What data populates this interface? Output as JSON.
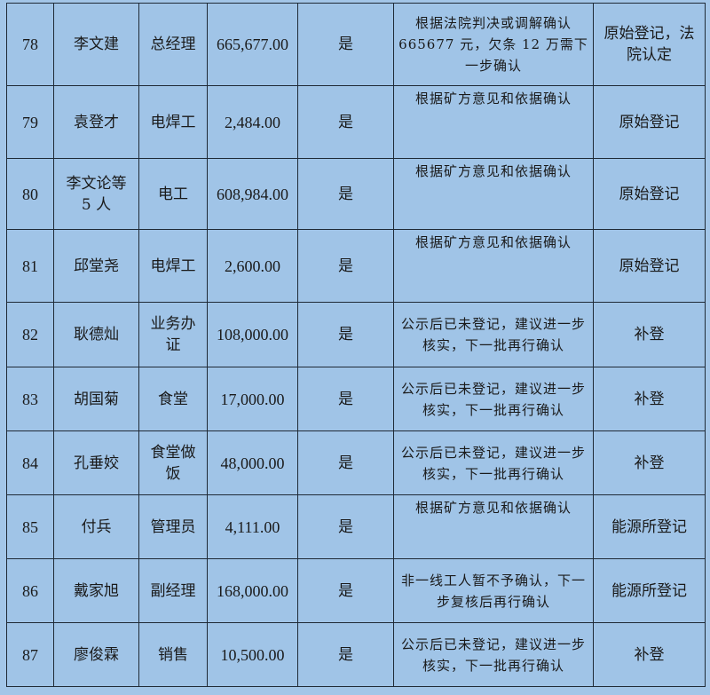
{
  "rows": [
    {
      "no": "78",
      "name": "李文建",
      "job": "总经理",
      "amount": "665,677.00",
      "flag": "是",
      "note": "根据法院判决或调解确认665677 元，欠条 12 万需下一步确认",
      "source": "原始登记，法\n院认定",
      "note_top": false
    },
    {
      "no": "79",
      "name": "袁登才",
      "job": "电焊工",
      "amount": "2,484.00",
      "flag": "是",
      "note": "根据矿方意见和依据确认",
      "source": "原始登记",
      "note_top": true
    },
    {
      "no": "80",
      "name": "李文论等\n5 人",
      "job": "电工",
      "amount": "608,984.00",
      "flag": "是",
      "note": "根据矿方意见和依据确认",
      "source": "原始登记",
      "note_top": true
    },
    {
      "no": "81",
      "name": "邱堂尧",
      "job": "电焊工",
      "amount": "2,600.00",
      "flag": "是",
      "note": "根据矿方意见和依据确认",
      "source": "原始登记",
      "note_top": true
    },
    {
      "no": "82",
      "name": "耿德灿",
      "job": "业务办\n证",
      "amount": "108,000.00",
      "flag": "是",
      "note": "公示后已未登记，建议进一步核实，下一批再行确认",
      "source": "补登",
      "note_top": false
    },
    {
      "no": "83",
      "name": "胡国菊",
      "job": "食堂",
      "amount": "17,000.00",
      "flag": "是",
      "note": "公示后已未登记，建议进一步核实，下一批再行确认",
      "source": "补登",
      "note_top": false
    },
    {
      "no": "84",
      "name": "孔垂姣",
      "job": "食堂做\n饭",
      "amount": "48,000.00",
      "flag": "是",
      "note": "公示后已未登记，建议进一步核实，下一批再行确认",
      "source": "补登",
      "note_top": false
    },
    {
      "no": "85",
      "name": "付兵",
      "job": "管理员",
      "amount": "4,111.00",
      "flag": "是",
      "note": "根据矿方意见和依据确认",
      "source": "能源所登记",
      "note_top": true
    },
    {
      "no": "86",
      "name": "戴家旭",
      "job": "副经理",
      "amount": "168,000.00",
      "flag": "是",
      "note": "非一线工人暂不予确认，下一步复核后再行确认",
      "source": "能源所登记",
      "note_top": false
    },
    {
      "no": "87",
      "name": "廖俊霖",
      "job": "销售",
      "amount": "10,500.00",
      "flag": "是",
      "note": "公示后已未登记，建议进一步核实，下一批再行确认",
      "source": "补登",
      "note_top": false
    }
  ]
}
